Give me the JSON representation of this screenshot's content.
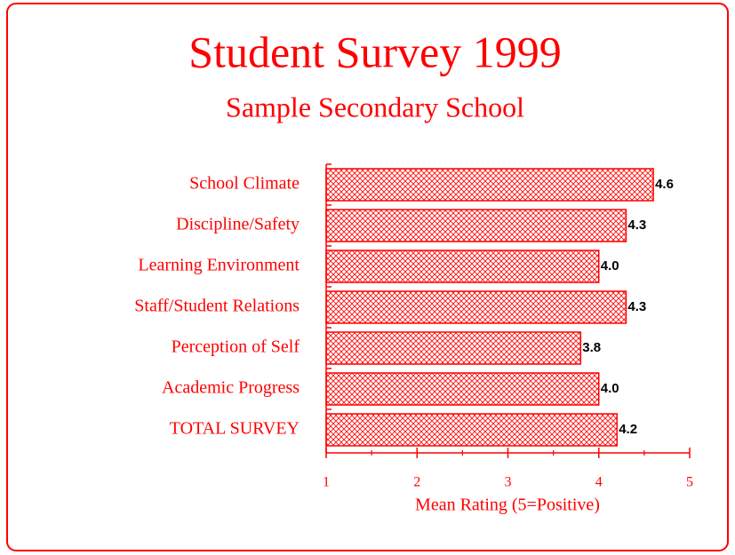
{
  "chart_data": {
    "type": "barh",
    "title": "Student Survey 1999",
    "subtitle": "Sample Secondary School",
    "xlabel": "Mean Rating (5=Positive)",
    "categories": [
      "School Climate",
      "Discipline/Safety",
      "Learning Environment",
      "Staff/Student Relations",
      "Perception of Self",
      "Academic Progress",
      "TOTAL SURVEY"
    ],
    "values": [
      4.6,
      4.3,
      4.0,
      4.3,
      3.8,
      4.0,
      4.2
    ],
    "value_labels": [
      "4.6",
      "4.3",
      "4.0",
      "4.3",
      "3.8",
      "4.0",
      "4.2"
    ],
    "color": "#ff0000",
    "xlim": [
      1,
      5
    ],
    "xticks": [
      1,
      2,
      3,
      4,
      5
    ],
    "xminorticks": [
      1.5,
      2.5,
      3.5,
      4.5
    ]
  }
}
